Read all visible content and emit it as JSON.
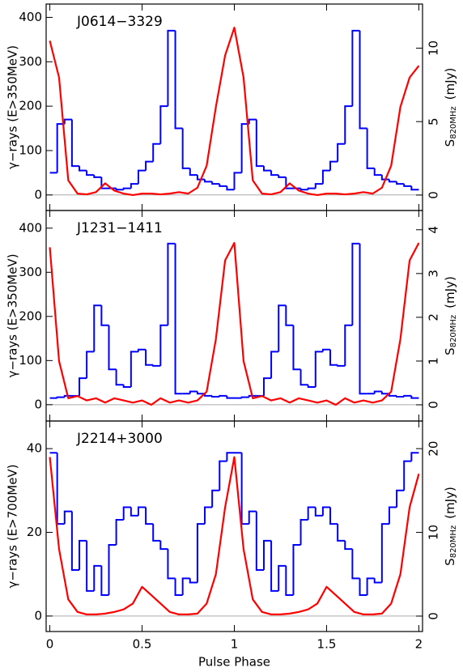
{
  "chart_data": [
    {
      "type": "combo",
      "title": "J0614−3329",
      "ylabel": "γ−rays (E>350MeV)",
      "y2label": {
        "main": "S",
        "sub": "820MHz",
        "unit": "(mJy)"
      },
      "xlim": [
        -0.02,
        2.02
      ],
      "xticks": [
        0,
        0.5,
        1,
        1.5,
        2
      ],
      "xtick_labels": false,
      "ylim": [
        -35,
        430
      ],
      "yticks": [
        0,
        100,
        200,
        300,
        400
      ],
      "y2lim": [
        -1.05,
        13.0
      ],
      "y2ticks": [
        0,
        5,
        10
      ],
      "series": [
        {
          "type": "histogram",
          "color": "#0000ff",
          "bins": [
            0,
            0.04,
            0.08,
            0.12,
            0.16,
            0.2,
            0.24,
            0.28,
            0.32,
            0.36,
            0.4,
            0.44,
            0.48,
            0.52,
            0.56,
            0.6,
            0.64,
            0.68,
            0.72,
            0.76,
            0.8,
            0.84,
            0.88,
            0.92,
            0.96,
            1,
            1.04,
            1.08,
            1.12,
            1.16,
            1.2,
            1.24,
            1.28,
            1.32,
            1.36,
            1.4,
            1.44,
            1.48,
            1.52,
            1.56,
            1.6,
            1.64,
            1.68,
            1.72,
            1.76,
            1.8,
            1.84,
            1.88,
            1.92,
            1.96,
            2
          ],
          "values": [
            50,
            160,
            170,
            65,
            55,
            45,
            40,
            15,
            15,
            12,
            15,
            25,
            55,
            75,
            115,
            200,
            370,
            150,
            60,
            45,
            35,
            30,
            25,
            20,
            12,
            50,
            160,
            170,
            65,
            55,
            45,
            40,
            15,
            15,
            12,
            15,
            25,
            55,
            75,
            115,
            200,
            370,
            150,
            60,
            45,
            35,
            30,
            25,
            20,
            12
          ]
        },
        {
          "type": "line",
          "axis": "y2",
          "color": "#ff0000",
          "x": [
            0,
            0.05,
            0.1,
            0.15,
            0.2,
            0.25,
            0.3,
            0.35,
            0.4,
            0.45,
            0.5,
            0.55,
            0.6,
            0.65,
            0.7,
            0.75,
            0.8,
            0.85,
            0.9,
            0.95,
            1,
            1.05,
            1.1,
            1.15,
            1.2,
            1.25,
            1.3,
            1.35,
            1.4,
            1.45,
            1.5,
            1.55,
            1.6,
            1.65,
            1.7,
            1.75,
            1.8,
            1.85,
            1.9,
            1.95,
            2
          ],
          "values": [
            10.5,
            8,
            1,
            0.1,
            0.05,
            0.2,
            0.8,
            0.3,
            0.1,
            0,
            0.1,
            0.1,
            0.05,
            0.1,
            0.2,
            0.1,
            0.5,
            2,
            6,
            9.5,
            11.4,
            8,
            1,
            0.1,
            0.05,
            0.2,
            0.8,
            0.3,
            0.1,
            0,
            0.1,
            0.1,
            0.05,
            0.1,
            0.2,
            0.1,
            0.5,
            2,
            6,
            8,
            8.8
          ]
        }
      ]
    },
    {
      "type": "combo",
      "title": "J1231−1411",
      "ylabel": "γ−rays (E>350MeV)",
      "y2label": {
        "main": "S",
        "sub": "820MHz",
        "unit": "(mJy)"
      },
      "xlim": [
        -0.02,
        2.02
      ],
      "xticks": [
        0,
        0.5,
        1,
        1.5,
        2
      ],
      "xtick_labels": false,
      "ylim": [
        -37,
        440
      ],
      "yticks": [
        0,
        100,
        200,
        300,
        400
      ],
      "y2lim": [
        -0.37,
        4.44
      ],
      "y2ticks": [
        0,
        1,
        2,
        3,
        4
      ],
      "series": [
        {
          "type": "histogram",
          "color": "#0000ff",
          "bins": [
            0,
            0.04,
            0.08,
            0.12,
            0.16,
            0.2,
            0.24,
            0.28,
            0.32,
            0.36,
            0.4,
            0.44,
            0.48,
            0.52,
            0.56,
            0.6,
            0.64,
            0.68,
            0.72,
            0.76,
            0.8,
            0.84,
            0.88,
            0.92,
            0.96,
            1,
            1.04,
            1.08,
            1.12,
            1.16,
            1.2,
            1.24,
            1.28,
            1.32,
            1.36,
            1.4,
            1.44,
            1.48,
            1.52,
            1.56,
            1.6,
            1.64,
            1.68,
            1.72,
            1.76,
            1.8,
            1.84,
            1.88,
            1.92,
            1.96,
            2
          ],
          "values": [
            15,
            17,
            20,
            20,
            60,
            120,
            225,
            180,
            80,
            45,
            40,
            120,
            125,
            90,
            88,
            180,
            365,
            25,
            25,
            30,
            25,
            20,
            18,
            20,
            15,
            15,
            17,
            20,
            20,
            60,
            120,
            225,
            180,
            80,
            45,
            40,
            120,
            125,
            90,
            88,
            180,
            365,
            25,
            25,
            30,
            25,
            20,
            18,
            20,
            15
          ]
        },
        {
          "type": "line",
          "axis": "y2",
          "color": "#ff0000",
          "x": [
            0,
            0.05,
            0.1,
            0.15,
            0.2,
            0.25,
            0.3,
            0.35,
            0.4,
            0.45,
            0.5,
            0.55,
            0.6,
            0.65,
            0.7,
            0.75,
            0.8,
            0.85,
            0.9,
            0.95,
            1,
            1.05,
            1.1,
            1.15,
            1.2,
            1.25,
            1.3,
            1.35,
            1.4,
            1.45,
            1.5,
            1.55,
            1.6,
            1.65,
            1.7,
            1.75,
            1.8,
            1.85,
            1.9,
            1.95,
            2
          ],
          "values": [
            3.6,
            1,
            0.15,
            0.2,
            0.1,
            0.15,
            0.05,
            0.15,
            0.1,
            0.05,
            0.1,
            0,
            0.15,
            0.05,
            0.1,
            0.05,
            0.1,
            0.3,
            1.5,
            3.3,
            3.7,
            1,
            0.15,
            0.2,
            0.1,
            0.15,
            0.05,
            0.15,
            0.1,
            0.05,
            0.1,
            0,
            0.15,
            0.05,
            0.1,
            0.05,
            0.1,
            0.3,
            1.5,
            3.3,
            3.7
          ]
        }
      ]
    },
    {
      "type": "combo",
      "title": "J2214+3000",
      "ylabel": "γ−rays (E>700MeV)",
      "y2label": {
        "main": "S",
        "sub": "820MHz",
        "unit": "(mJy)"
      },
      "xlabel": "Pulse Phase",
      "xlim": [
        -0.02,
        2.02
      ],
      "xticks": [
        0,
        0.5,
        1,
        1.5,
        2
      ],
      "xtick_labels": true,
      "ylim": [
        -3.7,
        46.6
      ],
      "yticks": [
        0,
        20,
        40
      ],
      "y2lim": [
        -1.84,
        23.3
      ],
      "y2ticks": [
        0,
        10,
        20
      ],
      "series": [
        {
          "type": "histogram",
          "color": "#0000ff",
          "bins": [
            0,
            0.04,
            0.08,
            0.12,
            0.16,
            0.2,
            0.24,
            0.28,
            0.32,
            0.36,
            0.4,
            0.44,
            0.48,
            0.52,
            0.56,
            0.6,
            0.64,
            0.68,
            0.72,
            0.76,
            0.8,
            0.84,
            0.88,
            0.92,
            0.96,
            1,
            1.04,
            1.08,
            1.12,
            1.16,
            1.2,
            1.24,
            1.28,
            1.32,
            1.36,
            1.4,
            1.44,
            1.48,
            1.52,
            1.56,
            1.6,
            1.64,
            1.68,
            1.72,
            1.76,
            1.8,
            1.84,
            1.88,
            1.92,
            1.96,
            2
          ],
          "values": [
            39,
            22,
            25,
            11,
            18,
            6,
            12,
            5,
            17,
            23,
            26,
            24,
            26,
            22,
            18,
            16,
            9,
            5,
            9,
            8,
            22,
            26,
            30,
            37,
            39,
            39,
            22,
            25,
            11,
            18,
            6,
            12,
            5,
            17,
            23,
            26,
            24,
            26,
            22,
            18,
            16,
            9,
            5,
            9,
            8,
            22,
            26,
            30,
            37,
            39
          ]
        },
        {
          "type": "line",
          "axis": "y2",
          "color": "#ff0000",
          "x": [
            0,
            0.05,
            0.1,
            0.15,
            0.2,
            0.25,
            0.3,
            0.35,
            0.4,
            0.45,
            0.5,
            0.55,
            0.6,
            0.65,
            0.7,
            0.75,
            0.8,
            0.85,
            0.9,
            0.95,
            1,
            1.05,
            1.1,
            1.15,
            1.2,
            1.25,
            1.3,
            1.35,
            1.4,
            1.45,
            1.5,
            1.55,
            1.6,
            1.65,
            1.7,
            1.75,
            1.8,
            1.85,
            1.9,
            1.95,
            2
          ],
          "values": [
            19,
            8,
            2,
            0.5,
            0.2,
            0.2,
            0.3,
            0.5,
            0.8,
            1.5,
            3.5,
            2.5,
            1.5,
            0.5,
            0.2,
            0.2,
            0.3,
            1.5,
            5,
            13,
            19,
            8,
            2,
            0.5,
            0.2,
            0.2,
            0.3,
            0.5,
            0.8,
            1.5,
            3.5,
            2.5,
            1.5,
            0.5,
            0.2,
            0.2,
            0.3,
            1.5,
            5,
            13,
            17
          ]
        }
      ]
    }
  ]
}
